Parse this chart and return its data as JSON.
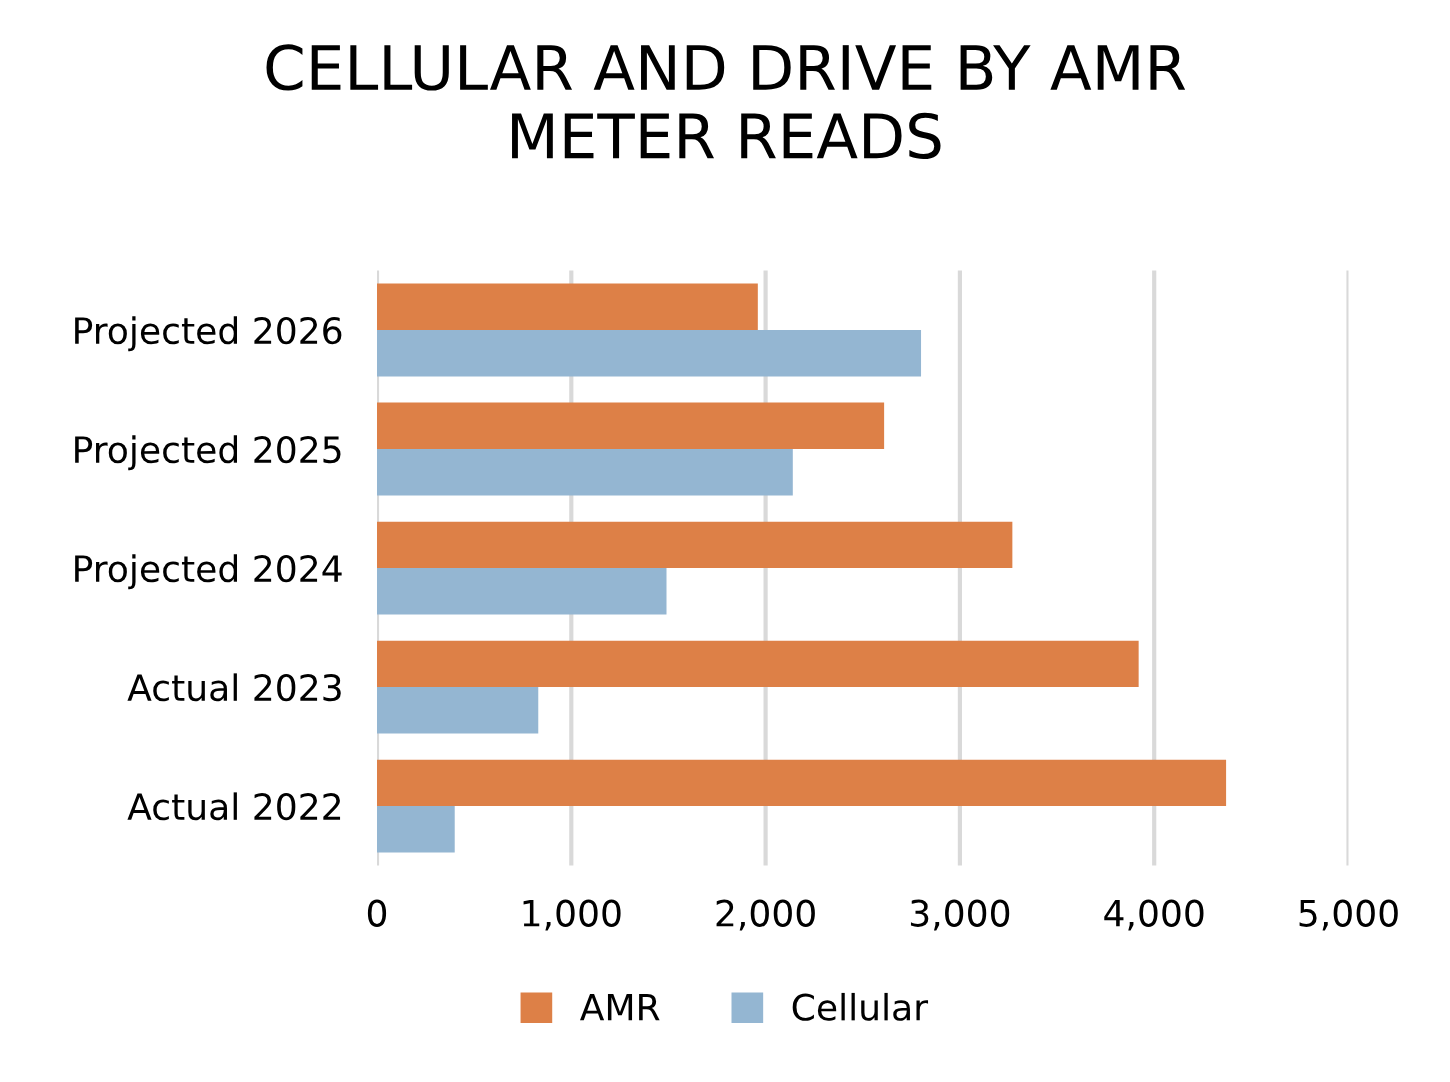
{
  "chart_data": {
    "type": "bar",
    "orientation": "horizontal",
    "title": "CELLULAR AND DRIVE BY AMR\nMETER READS",
    "categories": [
      "Projected 2026",
      "Projected 2025",
      "Projected 2024",
      "Actual 2023",
      "Actual 2022"
    ],
    "series": [
      {
        "name": "AMR",
        "color": "#dd8047",
        "values": [
          1960,
          2610,
          3270,
          3920,
          4370
        ]
      },
      {
        "name": "Cellular",
        "color": "#94b6d2",
        "values": [
          2800,
          2140,
          1490,
          830,
          400
        ]
      }
    ],
    "xlim": [
      0,
      5000
    ],
    "xticks": [
      {
        "value": 0,
        "label": "0"
      },
      {
        "value": 1000,
        "label": "1,000"
      },
      {
        "value": 2000,
        "label": "2,000"
      },
      {
        "value": 3000,
        "label": "3,000"
      },
      {
        "value": 4000,
        "label": "4,000"
      },
      {
        "value": 5000,
        "label": "5,000"
      }
    ],
    "grid": "x",
    "legend": "bottom"
  }
}
